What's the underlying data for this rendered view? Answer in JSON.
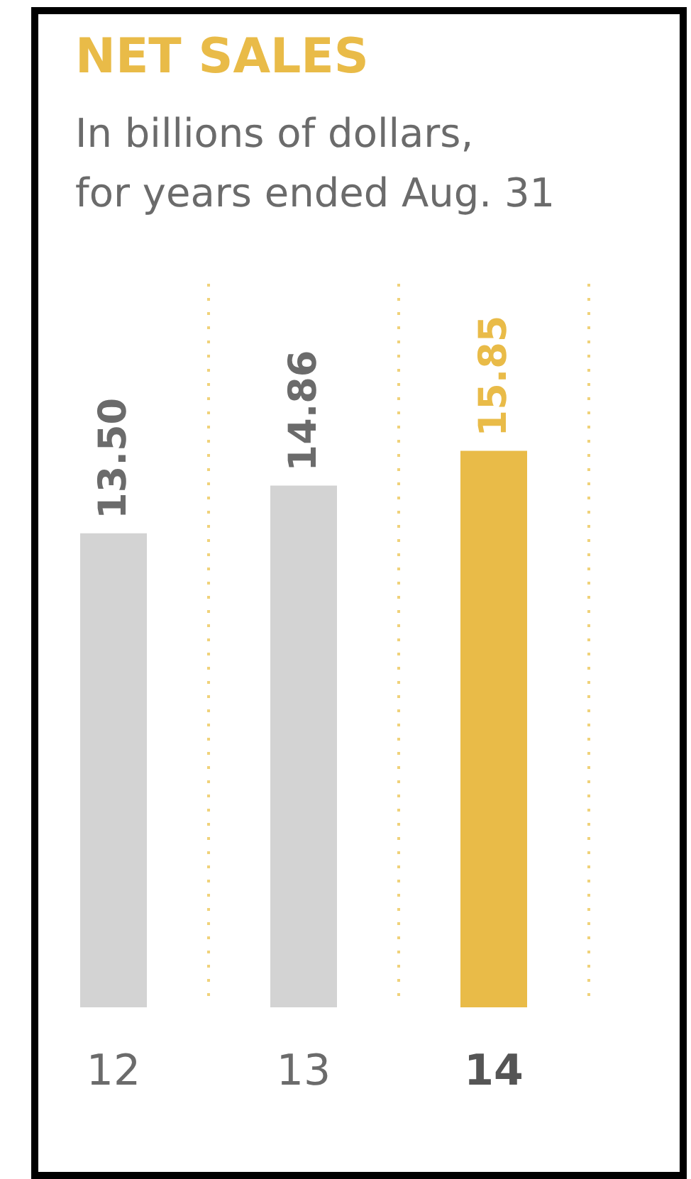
{
  "chart_data": {
    "type": "bar",
    "title": "NET SALES",
    "subtitle": "In billions of dollars,\nfor years ended Aug. 31",
    "categories": [
      "12",
      "13",
      "14"
    ],
    "values": [
      13.5,
      14.86,
      15.85
    ],
    "colors": [
      "#d3d3d3",
      "#d3d3d3",
      "#e9bb48"
    ],
    "value_labels": [
      "13.50",
      "14.86",
      "15.85"
    ],
    "grid": "x"
  }
}
